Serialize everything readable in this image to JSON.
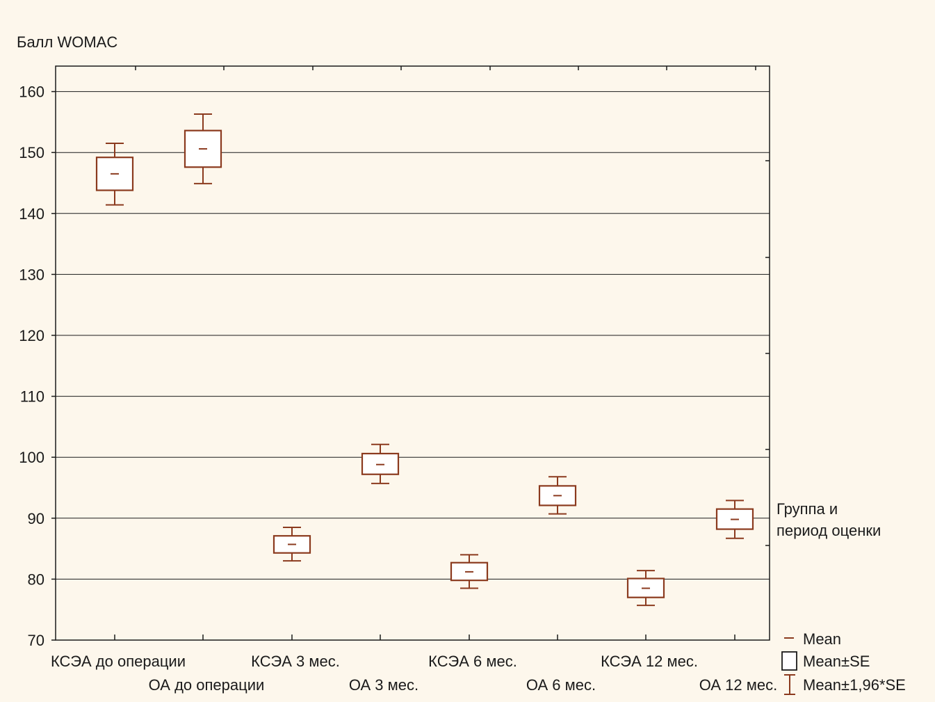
{
  "chart_data": {
    "type": "box",
    "ylabel": "Балл WOMAC",
    "ylim": [
      70,
      165
    ],
    "yticks": [
      70,
      80,
      90,
      100,
      110,
      120,
      130,
      140,
      150,
      160
    ],
    "grid": true,
    "categories": [
      "КСЭА до операции",
      "ОА до операции",
      "КСЭА 3 мес.",
      "ОА 3 мес.",
      "КСЭА 6 мес.",
      "ОА 6 мес.",
      "КСЭА 12 мес.",
      "ОА 12 мес."
    ],
    "x_title": "Группа и\nпериод оценки",
    "points": [
      {
        "mean": 146.5,
        "se_low": 143.8,
        "se_high": 149.2,
        "ci_low": 141.4,
        "ci_high": 151.5
      },
      {
        "mean": 150.6,
        "se_low": 147.6,
        "se_high": 153.6,
        "ci_low": 144.9,
        "ci_high": 156.3
      },
      {
        "mean": 85.7,
        "se_low": 84.3,
        "se_high": 87.1,
        "ci_low": 83.0,
        "ci_high": 88.5
      },
      {
        "mean": 98.8,
        "se_low": 97.2,
        "se_high": 100.6,
        "ci_low": 95.7,
        "ci_high": 102.1
      },
      {
        "mean": 81.2,
        "se_low": 79.8,
        "se_high": 82.7,
        "ci_low": 78.5,
        "ci_high": 84.0
      },
      {
        "mean": 93.7,
        "se_low": 92.1,
        "se_high": 95.3,
        "ci_low": 90.7,
        "ci_high": 96.8
      },
      {
        "mean": 78.5,
        "se_low": 77.0,
        "se_high": 80.1,
        "ci_low": 75.7,
        "ci_high": 81.4
      },
      {
        "mean": 89.8,
        "se_low": 88.2,
        "se_high": 91.5,
        "ci_low": 86.7,
        "ci_high": 92.9
      }
    ],
    "legend": {
      "position": "bottom-right",
      "items": [
        "Mean",
        "Mean±SE",
        "Mean±1,96*SE"
      ]
    },
    "color": "#8b3a1e"
  }
}
